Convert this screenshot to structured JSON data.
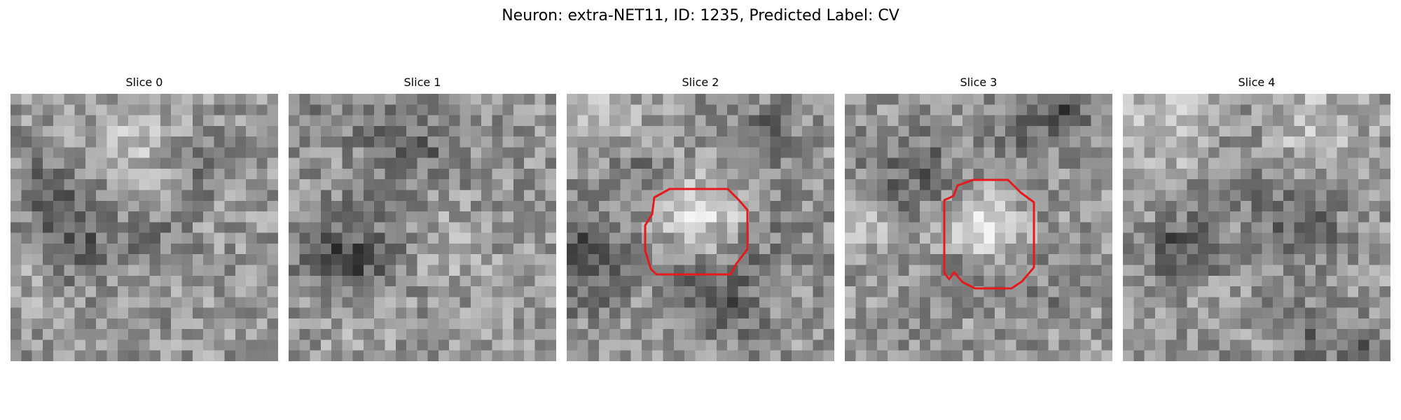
{
  "figure": {
    "title": "Neuron: extra-NET11, ID: 1235, Predicted Label: CV"
  },
  "panels": [
    {
      "title": "Slice 0",
      "has_outline": false
    },
    {
      "title": "Slice 1",
      "has_outline": false
    },
    {
      "title": "Slice 2",
      "has_outline": true
    },
    {
      "title": "Slice 3",
      "has_outline": true
    },
    {
      "title": "Slice 4",
      "has_outline": false
    }
  ],
  "colors": {
    "outline": "#e41a1c",
    "background": "#ffffff"
  }
}
